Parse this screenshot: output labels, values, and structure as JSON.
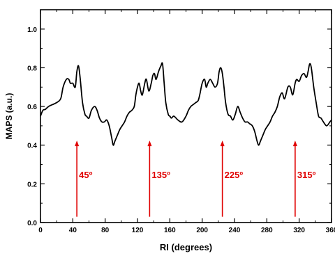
{
  "chart_data": {
    "type": "line",
    "title": "",
    "xlabel": "RI (degrees)",
    "ylabel": "MAPS (a.u.)",
    "xlim": [
      0,
      360
    ],
    "ylim": [
      0,
      1.1
    ],
    "x_ticks": [
      0,
      40,
      80,
      120,
      160,
      200,
      240,
      280,
      320,
      360
    ],
    "x_tick_labels": [
      "0",
      "40",
      "80",
      "120",
      "160",
      "200",
      "240",
      "280",
      "320",
      "360"
    ],
    "y_ticks": [
      0.0,
      0.2,
      0.4,
      0.6,
      0.8,
      1.0
    ],
    "y_tick_labels": [
      "0.0",
      "0.2",
      "0.4",
      "0.6",
      "0.8",
      "1.0"
    ],
    "grid": false,
    "line_color": "#000000",
    "series": [
      {
        "x": [
          0,
          3,
          6,
          10,
          15,
          20,
          25,
          28,
          32,
          35,
          37,
          40,
          43,
          45,
          47,
          49,
          52,
          55,
          57,
          60,
          63,
          67,
          70,
          73,
          76,
          79,
          82,
          85,
          88,
          90,
          92,
          95,
          98,
          101,
          104,
          107,
          110,
          113,
          116,
          118,
          120,
          122,
          124,
          126,
          129,
          131,
          134,
          137,
          139,
          141,
          143,
          146,
          149,
          151,
          153,
          155,
          158,
          160,
          162,
          165,
          170,
          175,
          180,
          183,
          186,
          189,
          192,
          195,
          197,
          200,
          203,
          205,
          207,
          210,
          213,
          216,
          219,
          221,
          223,
          225,
          227,
          229,
          232,
          235,
          238,
          241,
          244,
          247,
          250,
          253,
          256,
          259,
          262,
          265,
          268,
          270,
          272,
          275,
          278,
          281,
          284,
          287,
          290,
          293,
          296,
          299,
          302,
          306,
          309,
          312,
          315,
          317,
          320,
          323,
          326,
          329,
          331,
          333,
          335,
          338,
          341,
          344,
          347,
          350,
          354,
          358,
          360
        ],
        "y": [
          0.55,
          0.58,
          0.585,
          0.6,
          0.61,
          0.62,
          0.64,
          0.7,
          0.74,
          0.74,
          0.72,
          0.72,
          0.7,
          0.78,
          0.81,
          0.75,
          0.62,
          0.56,
          0.55,
          0.54,
          0.58,
          0.6,
          0.58,
          0.54,
          0.52,
          0.52,
          0.53,
          0.5,
          0.44,
          0.4,
          0.42,
          0.45,
          0.48,
          0.5,
          0.52,
          0.55,
          0.57,
          0.58,
          0.6,
          0.66,
          0.7,
          0.72,
          0.68,
          0.66,
          0.72,
          0.74,
          0.68,
          0.72,
          0.76,
          0.77,
          0.74,
          0.78,
          0.81,
          0.82,
          0.72,
          0.62,
          0.56,
          0.55,
          0.54,
          0.55,
          0.53,
          0.52,
          0.55,
          0.58,
          0.6,
          0.61,
          0.62,
          0.63,
          0.66,
          0.72,
          0.74,
          0.7,
          0.72,
          0.74,
          0.72,
          0.7,
          0.72,
          0.78,
          0.8,
          0.77,
          0.7,
          0.62,
          0.56,
          0.55,
          0.53,
          0.56,
          0.6,
          0.57,
          0.54,
          0.52,
          0.52,
          0.51,
          0.5,
          0.47,
          0.42,
          0.4,
          0.42,
          0.45,
          0.48,
          0.5,
          0.52,
          0.55,
          0.57,
          0.6,
          0.65,
          0.67,
          0.64,
          0.7,
          0.7,
          0.66,
          0.72,
          0.74,
          0.73,
          0.76,
          0.77,
          0.75,
          0.78,
          0.82,
          0.8,
          0.7,
          0.62,
          0.55,
          0.54,
          0.52,
          0.5,
          0.52,
          0.53
        ]
      }
    ],
    "annotations": [
      {
        "label": "45º",
        "x": 45,
        "y_start": 0.03,
        "y_end": 0.42
      },
      {
        "label": "135º",
        "x": 135,
        "y_start": 0.03,
        "y_end": 0.42
      },
      {
        "label": "225º",
        "x": 225,
        "y_start": 0.03,
        "y_end": 0.42
      },
      {
        "label": "315º",
        "x": 315,
        "y_start": 0.03,
        "y_end": 0.42
      }
    ],
    "annotation_color": "#e00000"
  }
}
